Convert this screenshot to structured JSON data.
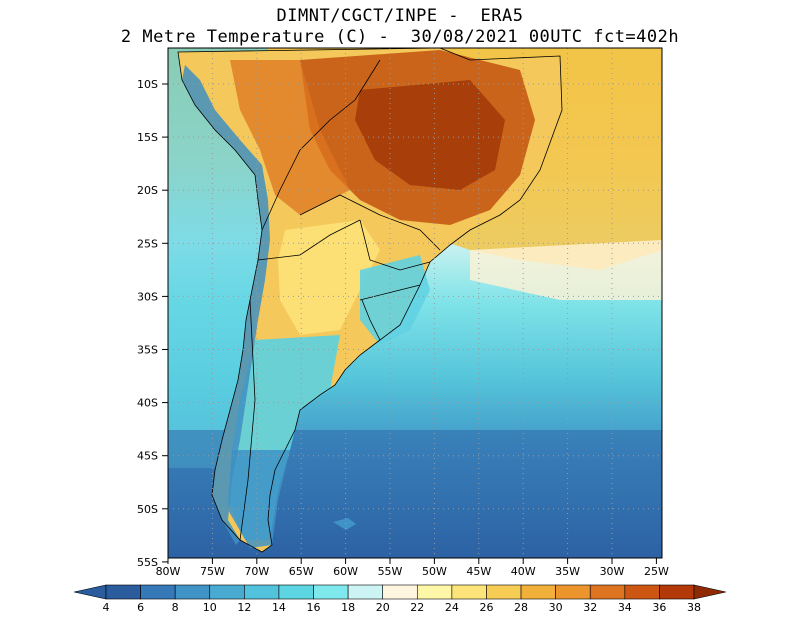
{
  "title_line1": "DIMNT/CGCT/INPE -  ERA5",
  "title_line2": "2 Metre Temperature (C) -  30/08/2021 00UTC fct=402h",
  "lat_labels": [
    "10S",
    "15S",
    "20S",
    "25S",
    "30S",
    "35S",
    "40S",
    "45S",
    "50S",
    "55S"
  ],
  "lon_labels": [
    "80W",
    "75W",
    "70W",
    "65W",
    "60W",
    "55W",
    "50W",
    "45W",
    "40W",
    "35W",
    "30W",
    "25W"
  ],
  "colorbar": {
    "labels": [
      "4",
      "6",
      "8",
      "10",
      "12",
      "14",
      "16",
      "18",
      "20",
      "22",
      "24",
      "26",
      "28",
      "30",
      "32",
      "34",
      "36",
      "38"
    ],
    "colors": [
      "#2a5c9e",
      "#3679b8",
      "#3f93c6",
      "#4aabd2",
      "#53c2dc",
      "#5cd6e3",
      "#7fe8ec",
      "#ccf4f4",
      "#fff6e0",
      "#fff7a8",
      "#fde47a",
      "#f7cc55",
      "#f0b03a",
      "#eb952c",
      "#de7420",
      "#cc5612",
      "#b33a08",
      "#8f2a04"
    ]
  }
}
